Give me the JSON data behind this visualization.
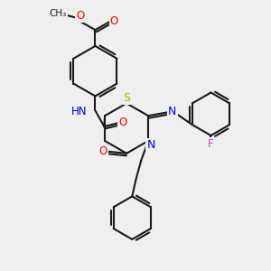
{
  "bg_color": "#efefef",
  "bond_color": "#1a1a1a",
  "atom_colors": {
    "O": "#ff0000",
    "N": "#0000ee",
    "S": "#bbaa00",
    "F": "#cc44cc",
    "H": "#444444",
    "C": "#1a1a1a"
  },
  "figsize": [
    3.0,
    3.0
  ],
  "dpi": 100
}
